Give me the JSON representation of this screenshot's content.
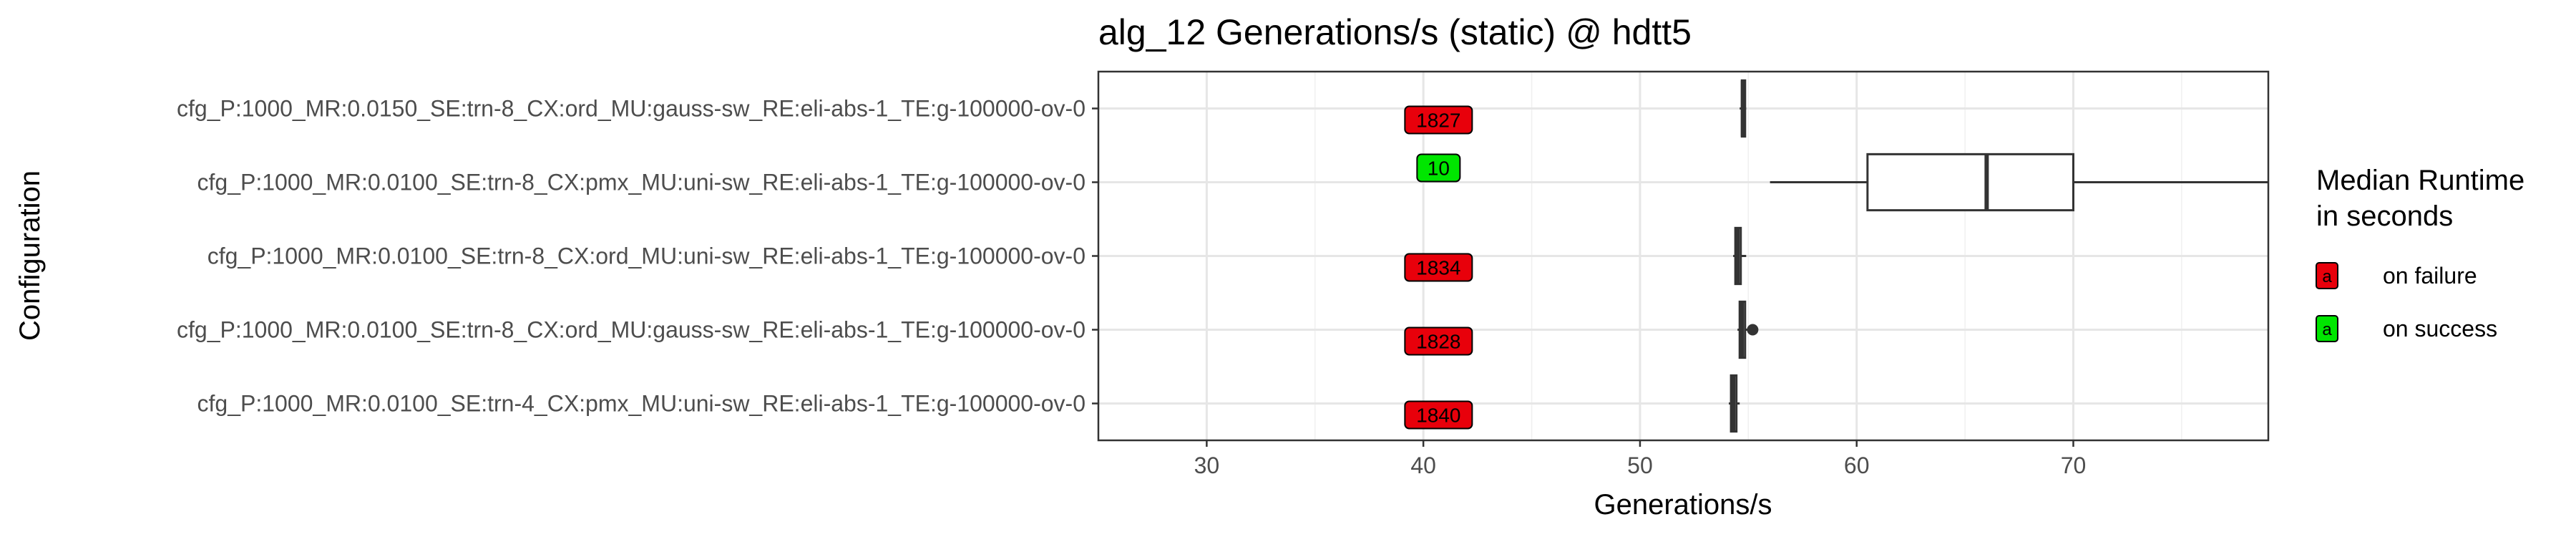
{
  "chart_data": {
    "type": "boxplot",
    "title": "alg_12 Generations/s (static) @ hdtt5",
    "xlabel": "Generations/s",
    "ylabel": "Configuration",
    "xlim": [
      25,
      79
    ],
    "x_ticks": [
      30,
      40,
      50,
      60,
      70
    ],
    "grid": true,
    "legend_position": "right",
    "categories": [
      "cfg_P:1000_MR:0.0150_SE:trn-8_CX:ord_MU:gauss-sw_RE:eli-abs-1_TE:g-100000-ov-0",
      "cfg_P:1000_MR:0.0100_SE:trn-8_CX:pmx_MU:uni-sw_RE:eli-abs-1_TE:g-100000-ov-0",
      "cfg_P:1000_MR:0.0100_SE:trn-8_CX:ord_MU:uni-sw_RE:eli-abs-1_TE:g-100000-ov-0",
      "cfg_P:1000_MR:0.0100_SE:trn-8_CX:ord_MU:gauss-sw_RE:eli-abs-1_TE:g-100000-ov-0",
      "cfg_P:1000_MR:0.0100_SE:trn-4_CX:pmx_MU:uni-sw_RE:eli-abs-1_TE:g-100000-ov-0"
    ],
    "boxes": [
      {
        "min": 54.6,
        "q1": 54.7,
        "median": 54.75,
        "q3": 54.85,
        "max": 54.9,
        "outliers": []
      },
      {
        "min": 56.0,
        "q1": 60.5,
        "median": 66.0,
        "q3": 70.0,
        "max": 79.0,
        "outliers": []
      },
      {
        "min": 54.3,
        "q1": 54.4,
        "median": 54.5,
        "q3": 54.65,
        "max": 54.9,
        "outliers": []
      },
      {
        "min": 54.5,
        "q1": 54.6,
        "median": 54.7,
        "q3": 54.85,
        "max": 55.0,
        "outliers": [
          55.2
        ]
      },
      {
        "min": 54.1,
        "q1": 54.2,
        "median": 54.3,
        "q3": 54.45,
        "max": 54.6,
        "outliers": []
      }
    ],
    "runtime_labels": [
      {
        "text": "1827",
        "status": "failure",
        "x": 40.7
      },
      {
        "text": "10",
        "status": "success",
        "x": 40.7
      },
      {
        "text": "1834",
        "status": "failure",
        "x": 40.7
      },
      {
        "text": "1828",
        "status": "failure",
        "x": 40.7
      },
      {
        "text": "1840",
        "status": "failure",
        "x": 40.7
      }
    ],
    "legend": {
      "title_line1": "Median Runtime",
      "title_line2": "in seconds",
      "key_glyph": "a",
      "entries": [
        {
          "label": "on failure",
          "color": "#e8000b"
        },
        {
          "label": "on success",
          "color": "#00e600"
        }
      ]
    },
    "colors": {
      "failure": "#e8000b",
      "success": "#00e600"
    }
  }
}
